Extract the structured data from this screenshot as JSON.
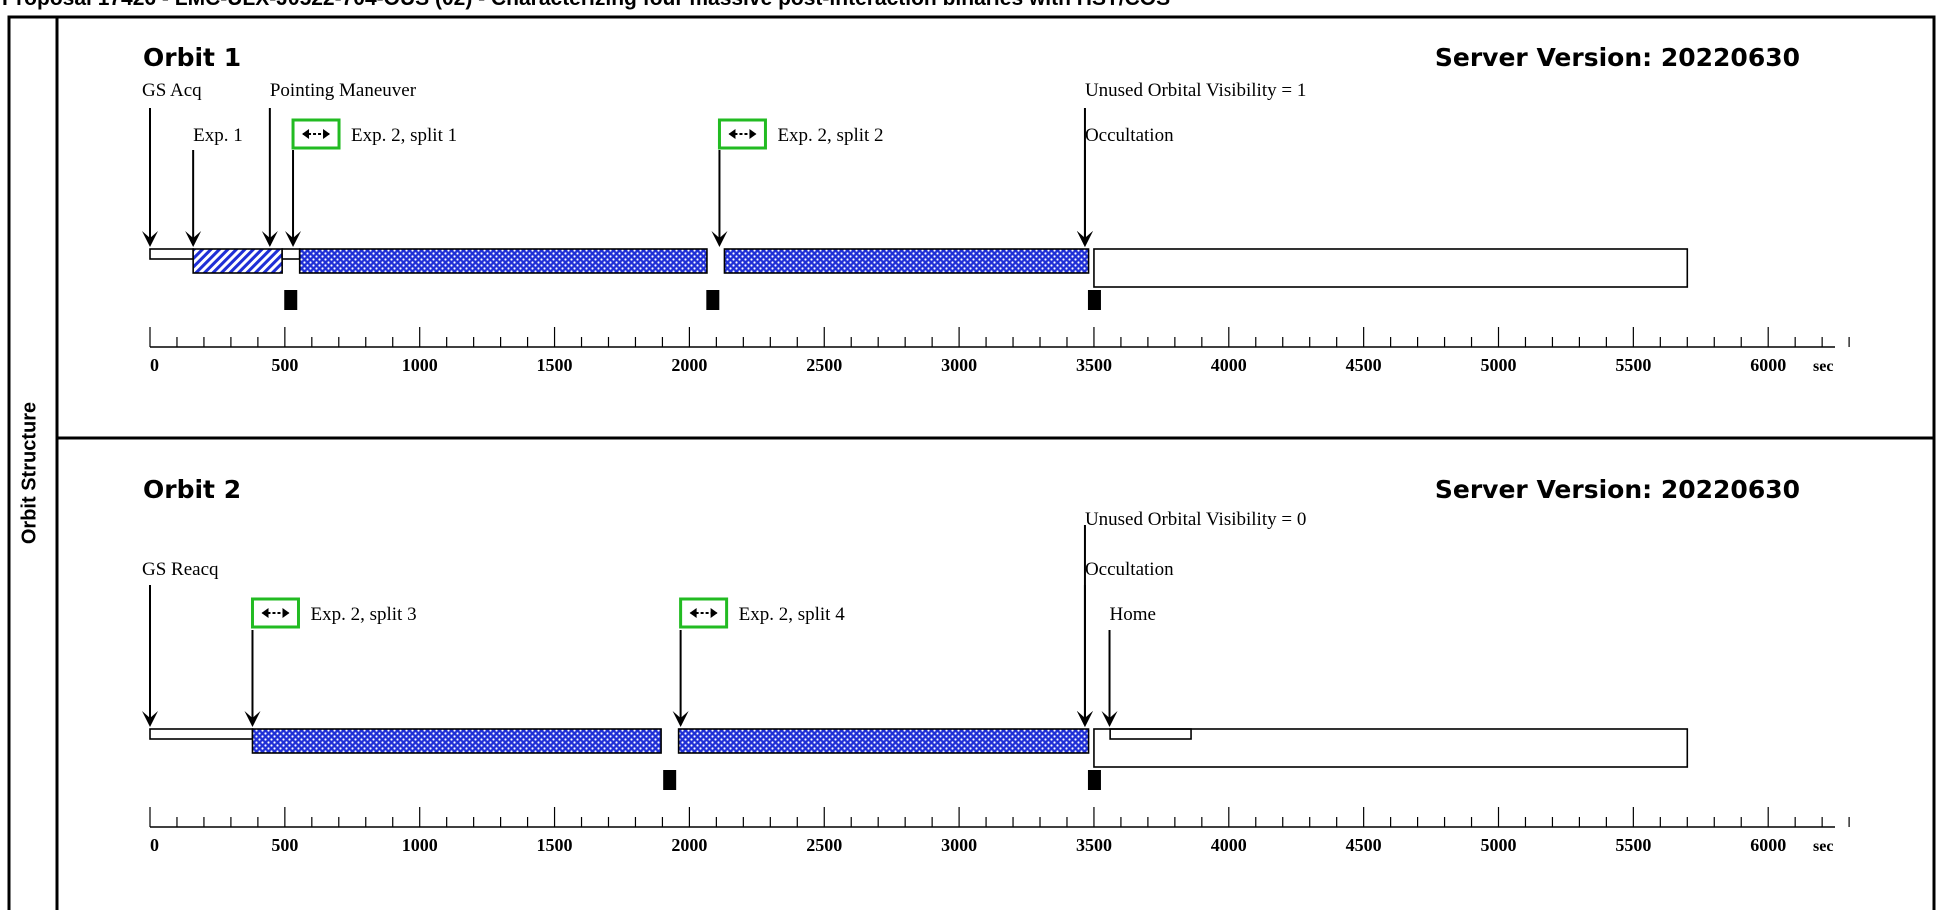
{
  "header": {
    "title": "Proposal 17426 - LMC-ULX-J0522-704-OUS (02) - Characterizing four massive post-interaction binaries with HST/COS"
  },
  "sidebar": {
    "label": "Orbit Structure"
  },
  "axis": {
    "ticks": [
      "0",
      "500",
      "1000",
      "1500",
      "2000",
      "2500",
      "3000",
      "3500",
      "4000",
      "4500",
      "5000",
      "5500",
      "6000"
    ],
    "unit": "sec"
  },
  "orbits": [
    {
      "title": "Orbit 1",
      "server_version": "Server Version: 20220630",
      "events": [
        {
          "label": "GS Acq",
          "t": 0
        },
        {
          "label": "Pointing Maneuver",
          "t": 500
        },
        {
          "label": "Exp. 1",
          "t": 160
        },
        {
          "label": "Exp. 2, split 1",
          "t": 560,
          "icon": "split-arrow-icon"
        },
        {
          "label": "Exp. 2, split 2",
          "t": 2130,
          "icon": "split-arrow-icon"
        },
        {
          "label": "Unused Orbital Visibility = 1",
          "t": 3500
        },
        {
          "label": "Occultation",
          "t": 3500
        }
      ],
      "segments": [
        {
          "name": "gs-acq",
          "start": 0,
          "end": 160,
          "pattern": "empty-thin"
        },
        {
          "name": "exp1",
          "start": 160,
          "end": 490,
          "pattern": "hatch"
        },
        {
          "name": "pointing",
          "start": 490,
          "end": 555,
          "pattern": "empty-thin"
        },
        {
          "name": "exp2-split1",
          "start": 555,
          "end": 2065,
          "pattern": "dots"
        },
        {
          "name": "exp2-split2",
          "start": 2130,
          "end": 3480,
          "pattern": "dots"
        },
        {
          "name": "occultation",
          "start": 3500,
          "end": 5700,
          "pattern": "empty-tall"
        }
      ],
      "markers": [
        520,
        2085,
        3500
      ]
    },
    {
      "title": "Orbit 2",
      "server_version": "Server Version: 20220630",
      "events": [
        {
          "label": "Unused Orbital Visibility = 0",
          "t": 3500
        },
        {
          "label": "GS Reacq",
          "t": 0
        },
        {
          "label": "Occultation",
          "t": 3500
        },
        {
          "label": "Exp. 2, split 3",
          "t": 380,
          "icon": "split-arrow-icon"
        },
        {
          "label": "Exp. 2, split 4",
          "t": 1960,
          "icon": "split-arrow-icon"
        },
        {
          "label": "Home",
          "t": 3580
        }
      ],
      "segments": [
        {
          "name": "gs-reacq",
          "start": 0,
          "end": 380,
          "pattern": "empty-thin"
        },
        {
          "name": "exp2-split3",
          "start": 380,
          "end": 1895,
          "pattern": "dots"
        },
        {
          "name": "exp2-split4",
          "start": 1960,
          "end": 3480,
          "pattern": "dots"
        },
        {
          "name": "home",
          "start": 3560,
          "end": 3860,
          "pattern": "empty-thin"
        },
        {
          "name": "occultation",
          "start": 3500,
          "end": 5700,
          "pattern": "empty-tall"
        }
      ],
      "markers": [
        1925,
        3500
      ]
    }
  ],
  "colors": {
    "bar_fill": "#1f2fd6",
    "icon_border": "#22bb22",
    "line": "#000000",
    "background": "#ffffff"
  }
}
